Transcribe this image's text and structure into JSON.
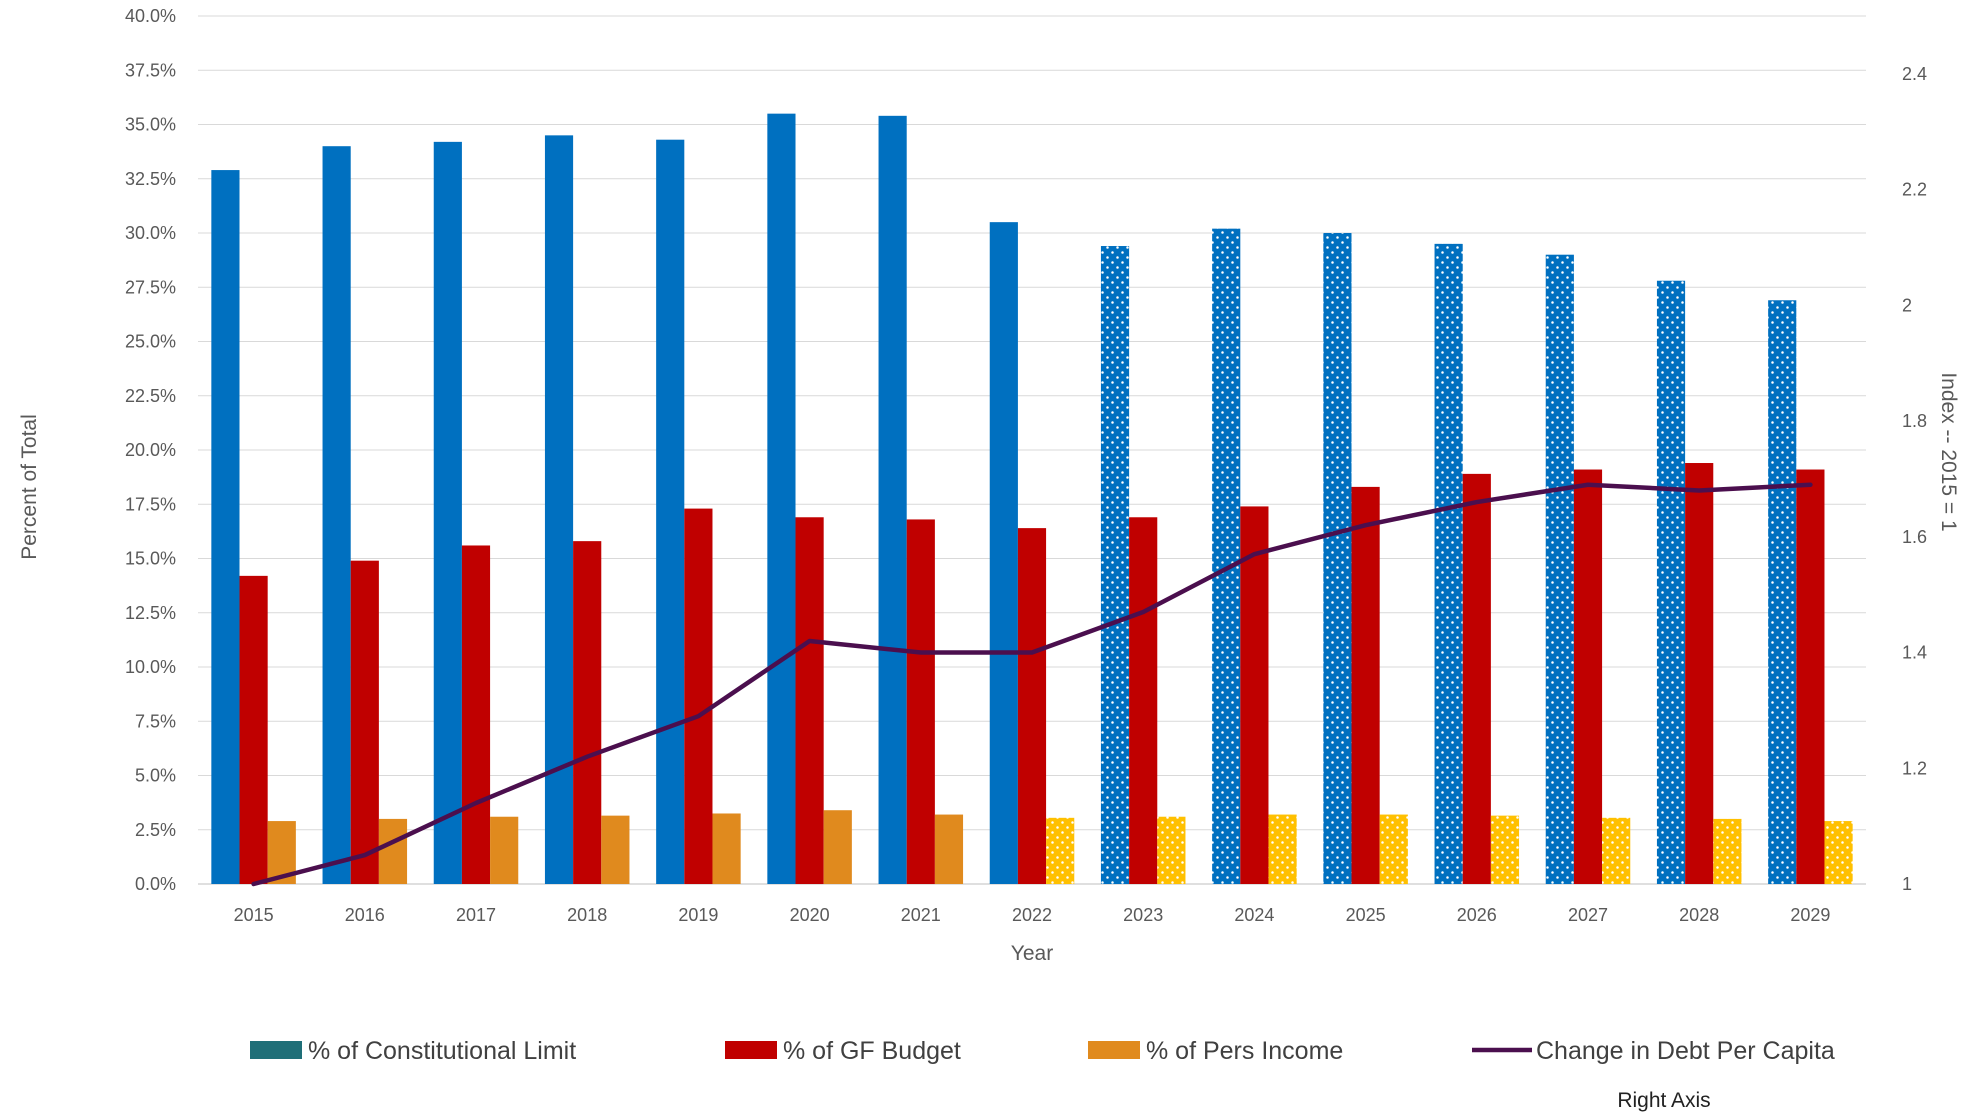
{
  "chart_data": {
    "type": "bar",
    "title": "",
    "xlabel": "Year",
    "ylabel": "Percent of Total",
    "y2label": "Index -- 2015 = 1",
    "categories": [
      "2015",
      "2016",
      "2017",
      "2018",
      "2019",
      "2020",
      "2021",
      "2022",
      "2023",
      "2024",
      "2025",
      "2026",
      "2027",
      "2028",
      "2029"
    ],
    "ylim": [
      0,
      40
    ],
    "yticks": [
      "0.0%",
      "2.5%",
      "5.0%",
      "7.5%",
      "10.0%",
      "12.5%",
      "15.0%",
      "17.5%",
      "20.0%",
      "22.5%",
      "25.0%",
      "27.5%",
      "30.0%",
      "32.5%",
      "35.0%",
      "37.5%",
      "40.0%"
    ],
    "y2lim": [
      1,
      2.5
    ],
    "y2ticks": [
      "1",
      "1.2",
      "1.4",
      "1.6",
      "1.8",
      "2",
      "2.2",
      "2.4"
    ],
    "grid": true,
    "legend_position": "bottom",
    "right_axis_note": "Right Axis",
    "series": [
      {
        "name": "% of Constitutional Limit",
        "type": "bar",
        "axis": "left",
        "color": "#0070C0",
        "legend_color": "#1F6F78",
        "dotted_from_category": "2023",
        "values": [
          32.9,
          34.0,
          34.2,
          34.5,
          34.3,
          35.5,
          35.4,
          30.5,
          29.4,
          30.2,
          30.0,
          29.5,
          29.0,
          27.8,
          26.9
        ]
      },
      {
        "name": "% of GF Budget",
        "type": "bar",
        "axis": "left",
        "color": "#C00000",
        "values": [
          14.2,
          14.9,
          15.6,
          15.8,
          17.3,
          16.9,
          16.8,
          16.4,
          16.9,
          17.4,
          18.3,
          18.9,
          19.1,
          19.4,
          19.1
        ]
      },
      {
        "name": "% of Pers Income",
        "type": "bar",
        "axis": "left",
        "color": "#E08A1E",
        "projected_color": "#FFC000",
        "dotted_from_category": "2022",
        "values": [
          2.9,
          3.0,
          3.1,
          3.15,
          3.25,
          3.4,
          3.2,
          3.05,
          3.1,
          3.2,
          3.2,
          3.15,
          3.05,
          3.0,
          2.9
        ]
      },
      {
        "name": "Change in Debt Per Capita",
        "type": "line",
        "axis": "right",
        "color": "#4B0F4E",
        "values": [
          1.0,
          1.05,
          1.14,
          1.22,
          1.29,
          1.42,
          1.4,
          1.4,
          1.47,
          1.57,
          1.62,
          1.66,
          1.69,
          1.68,
          1.69
        ]
      }
    ]
  }
}
